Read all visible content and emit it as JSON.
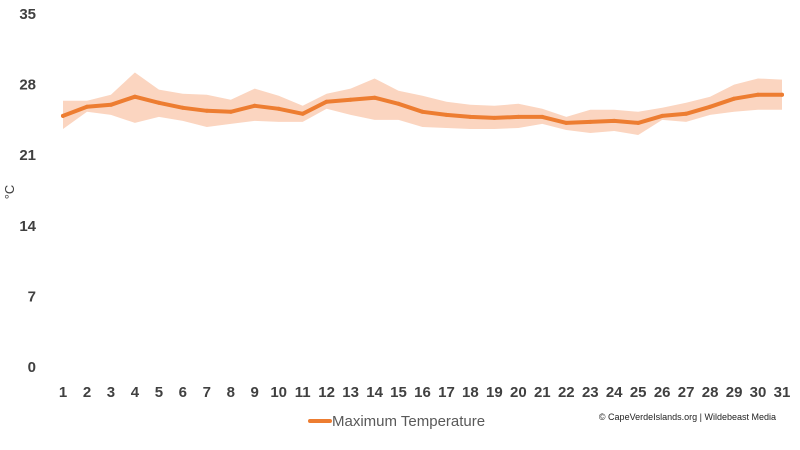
{
  "chart_data": {
    "type": "line",
    "title": "",
    "xlabel": "",
    "ylabel": "°C",
    "ylim": [
      0,
      35
    ],
    "yticks": [
      "0",
      "7",
      "14",
      "21",
      "28",
      "35"
    ],
    "x": [
      "1",
      "2",
      "3",
      "4",
      "5",
      "6",
      "7",
      "8",
      "9",
      "10",
      "11",
      "12",
      "13",
      "14",
      "15",
      "16",
      "17",
      "18",
      "19",
      "20",
      "21",
      "22",
      "23",
      "24",
      "25",
      "26",
      "27",
      "28",
      "29",
      "30",
      "31"
    ],
    "series": [
      {
        "name": "Maximum Temperature",
        "color": "#ed7d31",
        "values": [
          24.9,
          25.8,
          26.0,
          26.8,
          26.2,
          25.7,
          25.4,
          25.3,
          25.9,
          25.6,
          25.1,
          26.3,
          26.5,
          26.7,
          26.1,
          25.3,
          25.0,
          24.8,
          24.7,
          24.8,
          24.8,
          24.2,
          24.3,
          24.4,
          24.2,
          24.9,
          25.1,
          25.8,
          26.6,
          27.0,
          27.0
        ]
      }
    ],
    "range_band": {
      "color": "#fbd5c0",
      "upper": [
        26.4,
        26.4,
        27.0,
        29.2,
        27.5,
        27.1,
        27.0,
        26.5,
        27.6,
        26.9,
        25.9,
        27.1,
        27.6,
        28.6,
        27.4,
        26.9,
        26.3,
        26.0,
        25.9,
        26.1,
        25.6,
        24.8,
        25.5,
        25.5,
        25.3,
        25.7,
        26.2,
        26.8,
        28.0,
        28.6,
        28.5
      ],
      "lower": [
        23.6,
        25.3,
        25.0,
        24.2,
        24.8,
        24.4,
        23.8,
        24.1,
        24.4,
        24.3,
        24.3,
        25.6,
        25.0,
        24.5,
        24.5,
        23.8,
        23.7,
        23.6,
        23.6,
        23.7,
        24.1,
        23.5,
        23.2,
        23.4,
        23.0,
        24.5,
        24.3,
        25.0,
        25.3,
        25.5,
        25.5
      ]
    },
    "grid": false,
    "legend_position": "bottom"
  },
  "credit": "© CapeVerdeIslands.org | Wildebeast Media"
}
